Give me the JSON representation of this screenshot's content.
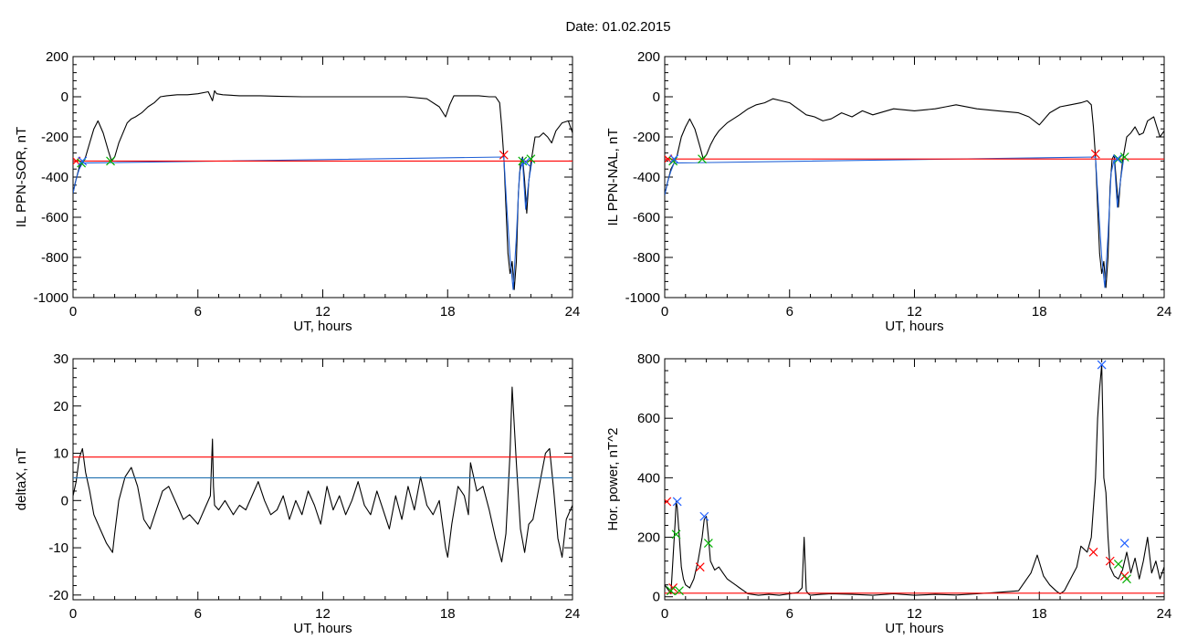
{
  "figure": {
    "title": "Date:  01.02.2015"
  },
  "chart_data": [
    {
      "type": "line",
      "xlabel": "UT, hours",
      "ylabel": "IL PPN-SOR, nT",
      "xlim": [
        0,
        24
      ],
      "ylim": [
        -1000,
        200
      ],
      "xticks": [
        0,
        6,
        12,
        18,
        24
      ],
      "yticks": [
        200,
        0,
        -200,
        -400,
        -600,
        -800,
        -1000
      ],
      "series": [
        {
          "color": "#000000",
          "x": [
            0,
            0.1,
            0.2,
            0.3,
            0.45,
            0.6,
            0.8,
            1.0,
            1.2,
            1.45,
            1.7,
            1.85,
            2.0,
            2.2,
            2.4,
            2.6,
            2.8,
            3.0,
            3.3,
            3.6,
            3.9,
            4.2,
            4.5,
            5.0,
            5.5,
            6.0,
            6.5,
            6.7,
            6.8,
            6.9,
            7.2,
            8,
            9,
            10,
            11,
            12,
            13,
            14,
            15,
            16,
            17,
            17.6,
            17.9,
            18.1,
            18.3,
            18.6,
            19,
            19.5,
            20,
            20.3,
            20.5,
            20.6,
            20.7,
            20.8,
            20.9,
            21.0,
            21.1,
            21.2,
            21.3,
            21.4,
            21.5,
            21.6,
            21.7,
            21.8,
            21.9,
            22.0,
            22.2,
            22.4,
            22.6,
            22.8,
            23.0,
            23.2,
            23.5,
            23.8,
            24
          ],
          "y": [
            -480,
            -430,
            -390,
            -350,
            -330,
            -300,
            -230,
            -160,
            -120,
            -180,
            -270,
            -320,
            -300,
            -230,
            -180,
            -130,
            -110,
            -100,
            -80,
            -50,
            -30,
            0,
            5,
            10,
            10,
            15,
            25,
            -20,
            30,
            15,
            10,
            5,
            5,
            2,
            0,
            0,
            0,
            0,
            0,
            0,
            -10,
            -50,
            -100,
            -40,
            5,
            5,
            5,
            5,
            0,
            0,
            -30,
            -150,
            -300,
            -550,
            -780,
            -880,
            -820,
            -960,
            -820,
            -480,
            -330,
            -300,
            -420,
            -580,
            -420,
            -330,
            -200,
            -200,
            -180,
            -200,
            -230,
            -170,
            -130,
            -120,
            -180
          ]
        },
        {
          "color": "#1f5fd6",
          "x": [
            0,
            0.15,
            0.3,
            0.45,
            20.7,
            20.85,
            21.0,
            21.15,
            21.3,
            21.45,
            21.6,
            21.75,
            21.9,
            22.05
          ],
          "y": [
            -480,
            -410,
            -360,
            -330,
            -300,
            -560,
            -800,
            -960,
            -700,
            -380,
            -320,
            -560,
            -420,
            -320
          ]
        },
        {
          "color": "#ff0000",
          "x": [
            0,
            24
          ],
          "y": [
            -320,
            -320
          ]
        }
      ],
      "markers": [
        {
          "color": "#ff0000",
          "x": [
            0.15,
            20.7
          ],
          "y": [
            -320,
            -290
          ]
        },
        {
          "color": "#00b000",
          "x": [
            0.4,
            1.8,
            21.6,
            22.0
          ],
          "y": [
            -330,
            -320,
            -320,
            -310
          ]
        },
        {
          "color": "#2060ff",
          "x": [
            0.45,
            21.75
          ],
          "y": [
            -320,
            -325
          ]
        }
      ]
    },
    {
      "type": "line",
      "xlabel": "UT, hours",
      "ylabel": "IL PPN-NAL, nT",
      "xlim": [
        0,
        24
      ],
      "ylim": [
        -1000,
        200
      ],
      "xticks": [
        0,
        6,
        12,
        18,
        24
      ],
      "yticks": [
        200,
        0,
        -200,
        -400,
        -600,
        -800,
        -1000
      ],
      "series": [
        {
          "color": "#000000",
          "x": [
            0,
            0.1,
            0.2,
            0.3,
            0.45,
            0.6,
            0.8,
            1.0,
            1.2,
            1.45,
            1.7,
            1.85,
            2.0,
            2.2,
            2.4,
            2.6,
            2.8,
            3.0,
            3.3,
            3.6,
            4.0,
            4.4,
            4.8,
            5.2,
            5.6,
            6.0,
            6.4,
            6.8,
            7.2,
            7.6,
            8.0,
            8.5,
            9,
            9.5,
            10,
            11,
            12,
            13,
            13.5,
            14,
            15,
            16,
            17,
            17.5,
            18,
            18.5,
            19,
            19.5,
            20,
            20.3,
            20.5,
            20.6,
            20.7,
            20.8,
            20.9,
            21.0,
            21.1,
            21.2,
            21.3,
            21.4,
            21.5,
            21.6,
            21.7,
            21.8,
            21.9,
            22.0,
            22.2,
            22.4,
            22.6,
            22.8,
            23.0,
            23.2,
            23.5,
            23.8,
            24
          ],
          "y": [
            -490,
            -440,
            -400,
            -360,
            -330,
            -290,
            -200,
            -150,
            -110,
            -160,
            -250,
            -310,
            -290,
            -240,
            -200,
            -170,
            -150,
            -130,
            -110,
            -90,
            -60,
            -40,
            -30,
            -10,
            -20,
            -30,
            -60,
            -90,
            -100,
            -120,
            -110,
            -80,
            -100,
            -70,
            -90,
            -60,
            -70,
            -60,
            -50,
            -40,
            -60,
            -70,
            -80,
            -100,
            -140,
            -80,
            -50,
            -40,
            -30,
            -20,
            -40,
            -150,
            -300,
            -550,
            -780,
            -880,
            -820,
            -950,
            -800,
            -450,
            -310,
            -290,
            -420,
            -550,
            -420,
            -320,
            -200,
            -180,
            -150,
            -190,
            -180,
            -120,
            -100,
            -200,
            -170
          ]
        },
        {
          "color": "#1f5fd6",
          "x": [
            0,
            0.15,
            0.3,
            0.45,
            20.7,
            20.85,
            21.0,
            21.15,
            21.3,
            21.45,
            21.6,
            21.75,
            21.9,
            22.05
          ],
          "y": [
            -490,
            -420,
            -370,
            -330,
            -300,
            -560,
            -800,
            -950,
            -690,
            -380,
            -310,
            -550,
            -420,
            -310
          ]
        },
        {
          "color": "#ff0000",
          "x": [
            0,
            24
          ],
          "y": [
            -310,
            -310
          ]
        }
      ],
      "markers": [
        {
          "color": "#ff0000",
          "x": [
            0.15,
            20.7
          ],
          "y": [
            -310,
            -285
          ]
        },
        {
          "color": "#00b000",
          "x": [
            0.4,
            1.8,
            21.8,
            22.1
          ],
          "y": [
            -320,
            -310,
            -310,
            -300
          ]
        },
        {
          "color": "#2060ff",
          "x": [
            0.45,
            21.75
          ],
          "y": [
            -310,
            -310
          ]
        }
      ]
    },
    {
      "type": "line",
      "xlabel": "UT, hours",
      "ylabel": "deltaX, nT",
      "xlim": [
        0,
        24
      ],
      "ylim": [
        -21,
        30
      ],
      "xticks": [
        0,
        6,
        12,
        18,
        24
      ],
      "yticks": [
        30,
        20,
        10,
        0,
        -10,
        -20
      ],
      "series": [
        {
          "color": "#000000",
          "x": [
            0,
            0.15,
            0.3,
            0.45,
            0.6,
            0.8,
            1.0,
            1.3,
            1.6,
            1.9,
            2.0,
            2.2,
            2.5,
            2.8,
            3.1,
            3.4,
            3.7,
            4.0,
            4.3,
            4.6,
            5.0,
            5.3,
            5.6,
            6.0,
            6.3,
            6.6,
            6.7,
            6.75,
            6.8,
            7.0,
            7.3,
            7.7,
            8.0,
            8.3,
            8.6,
            8.9,
            9.2,
            9.5,
            9.8,
            10.1,
            10.4,
            10.7,
            11.0,
            11.3,
            11.6,
            11.9,
            12.2,
            12.5,
            12.8,
            13.1,
            13.4,
            13.7,
            14.0,
            14.3,
            14.6,
            14.9,
            15.2,
            15.5,
            15.8,
            16.1,
            16.4,
            16.7,
            17.0,
            17.3,
            17.6,
            17.9,
            18.0,
            18.2,
            18.5,
            18.8,
            19.0,
            19.1,
            19.4,
            19.7,
            20.0,
            20.3,
            20.6,
            20.8,
            21.0,
            21.1,
            21.3,
            21.5,
            21.7,
            21.9,
            22.1,
            22.4,
            22.7,
            22.9,
            23.1,
            23.3,
            23.5,
            23.7,
            23.9,
            24
          ],
          "y": [
            1,
            4,
            9,
            11,
            6,
            2,
            -3,
            -6,
            -9,
            -11,
            -7,
            0,
            5,
            7,
            3,
            -4,
            -6,
            -2,
            2,
            3,
            -1,
            -4,
            -3,
            -5,
            -2,
            1,
            13,
            3,
            -1,
            -2,
            0,
            -3,
            -1,
            -2,
            1,
            4,
            0,
            -3,
            -2,
            1,
            -4,
            0,
            -3,
            2,
            -1,
            -5,
            3,
            -2,
            1,
            -3,
            0,
            4,
            -1,
            -3,
            2,
            -2,
            -6,
            1,
            -4,
            3,
            -2,
            5,
            -1,
            -3,
            0,
            -10,
            -12,
            -5,
            3,
            1,
            -3,
            8,
            2,
            3,
            -2,
            -8,
            -13,
            -7,
            10,
            24,
            8,
            -6,
            -11,
            -5,
            -4,
            3,
            10,
            11,
            2,
            -8,
            -12,
            -4,
            -2,
            -1
          ]
        },
        {
          "color": "#ff0000",
          "x": [
            0,
            24
          ],
          "y": [
            9.2,
            9.2
          ]
        },
        {
          "color": "#1f6fb0",
          "x": [
            0,
            24
          ],
          "y": [
            4.8,
            4.8
          ]
        }
      ],
      "markers": []
    },
    {
      "type": "line",
      "xlabel": "UT, hours",
      "ylabel": "Hor. power, nT^2",
      "xlim": [
        0,
        24
      ],
      "ylim": [
        -10,
        800
      ],
      "xticks": [
        0,
        6,
        12,
        18,
        24
      ],
      "yticks": [
        800,
        600,
        400,
        200,
        0
      ],
      "series": [
        {
          "color": "#000000",
          "x": [
            0,
            0.1,
            0.2,
            0.3,
            0.4,
            0.5,
            0.55,
            0.6,
            0.7,
            0.8,
            0.9,
            1.0,
            1.2,
            1.4,
            1.6,
            1.8,
            1.9,
            2.0,
            2.1,
            2.2,
            2.4,
            2.6,
            2.8,
            3.0,
            3.2,
            3.4,
            3.6,
            3.8,
            4.0,
            4.5,
            5.0,
            5.5,
            6.0,
            6.4,
            6.6,
            6.7,
            6.8,
            6.9,
            7.0,
            7.5,
            8,
            9,
            10,
            11,
            12,
            13,
            14,
            15,
            16,
            17,
            17.3,
            17.6,
            17.9,
            18.2,
            18.5,
            18.8,
            19.0,
            19.2,
            19.5,
            19.8,
            20.0,
            20.3,
            20.5,
            20.7,
            20.8,
            20.9,
            21.0,
            21.05,
            21.1,
            21.2,
            21.3,
            21.4,
            21.6,
            21.8,
            22.0,
            22.2,
            22.4,
            22.6,
            22.8,
            23.0,
            23.2,
            23.4,
            23.6,
            23.8,
            24
          ],
          "y": [
            40,
            30,
            20,
            10,
            130,
            250,
            320,
            300,
            200,
            100,
            60,
            40,
            30,
            60,
            120,
            200,
            260,
            270,
            200,
            120,
            90,
            100,
            80,
            60,
            50,
            40,
            30,
            20,
            10,
            5,
            8,
            5,
            10,
            15,
            30,
            200,
            20,
            10,
            5,
            8,
            10,
            8,
            5,
            10,
            5,
            8,
            6,
            10,
            15,
            20,
            50,
            80,
            140,
            70,
            40,
            20,
            10,
            20,
            60,
            100,
            170,
            150,
            200,
            400,
            600,
            700,
            780,
            600,
            400,
            350,
            200,
            100,
            70,
            60,
            90,
            150,
            80,
            130,
            60,
            120,
            200,
            80,
            120,
            60,
            100
          ]
        },
        {
          "color": "#ff0000",
          "x": [
            0,
            24
          ],
          "y": [
            12,
            12
          ]
        }
      ],
      "markers": [
        {
          "color": "#ff0000",
          "x": [
            0.1,
            0.4,
            1.7,
            20.6,
            21.4,
            22.1
          ],
          "y": [
            320,
            30,
            100,
            150,
            120,
            70
          ]
        },
        {
          "color": "#00b000",
          "x": [
            0.3,
            0.55,
            0.7,
            2.1,
            21.8,
            22.2
          ],
          "y": [
            20,
            210,
            20,
            180,
            110,
            60
          ]
        },
        {
          "color": "#2060ff",
          "x": [
            0.6,
            1.9,
            21.0,
            22.1
          ],
          "y": [
            320,
            270,
            780,
            180
          ]
        }
      ]
    }
  ]
}
